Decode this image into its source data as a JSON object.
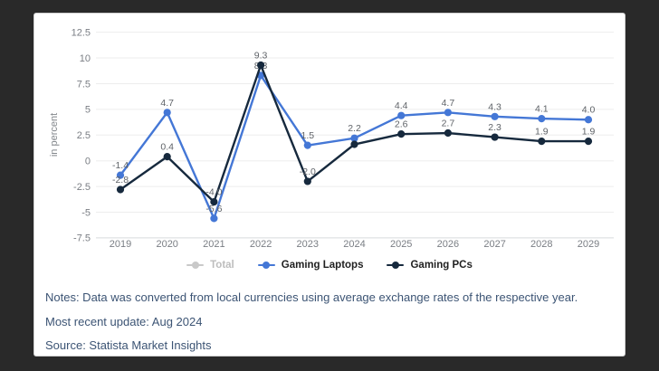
{
  "card_background": "#ffffff",
  "page_background": "#292929",
  "chart_data": {
    "type": "line",
    "title": "",
    "xlabel": "",
    "ylabel": "in percent",
    "categories": [
      "2019",
      "2020",
      "2021",
      "2022",
      "2023",
      "2024",
      "2025",
      "2026",
      "2027",
      "2028",
      "2029"
    ],
    "ylim": [
      -7.5,
      12.5
    ],
    "grid": true,
    "legend_position": "bottom",
    "yticks": [
      {
        "v": 12.5,
        "t": "12.5"
      },
      {
        "v": 10,
        "t": "10"
      },
      {
        "v": 7.5,
        "t": "7.5"
      },
      {
        "v": 5,
        "t": "5"
      },
      {
        "v": 2.5,
        "t": "2.5"
      },
      {
        "v": 0,
        "t": "0"
      },
      {
        "v": -2.5,
        "t": "-2.5"
      },
      {
        "v": -5,
        "t": "-5"
      },
      {
        "v": -7.5,
        "t": "-7.5"
      }
    ],
    "series": [
      {
        "name": "Total",
        "color": "#c9c9c9",
        "disabled": true,
        "values": [],
        "labels": []
      },
      {
        "name": "Gaming Laptops",
        "color": "#4477d6",
        "disabled": false,
        "values": [
          -1.4,
          4.7,
          -5.6,
          8.3,
          1.5,
          2.2,
          4.4,
          4.7,
          4.3,
          4.1,
          4.0
        ],
        "labels": [
          "-1.4",
          "4.7",
          "-5.6",
          "8.3",
          "1.5",
          "2.2",
          "4.4",
          "4.7",
          "4.3",
          "4.1",
          "4.0"
        ],
        "labels_under": [
          3
        ]
      },
      {
        "name": "Gaming PCs",
        "color": "#16293d",
        "disabled": false,
        "values": [
          -2.8,
          0.4,
          -4.0,
          9.3,
          -2.0,
          1.6,
          2.6,
          2.7,
          2.3,
          1.9,
          1.9
        ],
        "labels": [
          "-2.8",
          "0.4",
          "-4.0",
          "9.3",
          "-2.0",
          "",
          "2.6",
          "2.7",
          "2.3",
          "1.9",
          "1.9"
        ],
        "labels_under": []
      }
    ],
    "colors": {
      "grid": "#ededed",
      "axis": "#d6dade",
      "tick_text": "#7a7e84",
      "data_label": "#5f6368",
      "disabled_legend": "#c9c9c9"
    }
  },
  "footer": {
    "notes": "Notes: Data was converted from local currencies using average exchange rates of the respective year.",
    "update": "Most recent update: Aug 2024",
    "source": "Source: Statista Market Insights"
  }
}
